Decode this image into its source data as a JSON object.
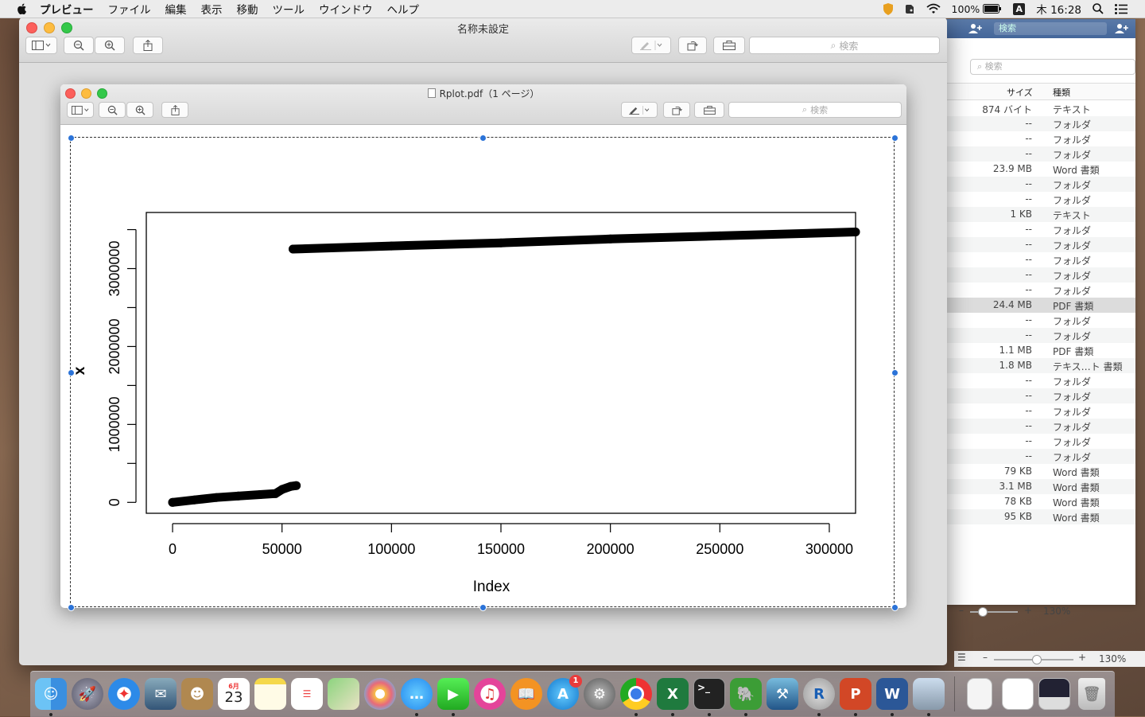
{
  "menubar": {
    "app": "プレビュー",
    "items": [
      "ファイル",
      "編集",
      "表示",
      "移動",
      "ツール",
      "ウインドウ",
      "ヘルプ"
    ],
    "battery": "100%",
    "ime": "A",
    "clock": "木 16:28"
  },
  "outer_window": {
    "title": "名称未設定",
    "search_placeholder": "検索"
  },
  "inner_window": {
    "title": "Rplot.pdf（1 ページ）",
    "search_placeholder": "検索"
  },
  "finder": {
    "search_top": "検索",
    "search_placeholder": "検索",
    "col_size": "サイズ",
    "col_kind": "種類",
    "rows": [
      {
        "size": "874 バイト",
        "kind": "テキスト"
      },
      {
        "size": "--",
        "kind": "フォルダ"
      },
      {
        "size": "--",
        "kind": "フォルダ"
      },
      {
        "size": "--",
        "kind": "フォルダ"
      },
      {
        "size": "23.9 MB",
        "kind": "Word 書類"
      },
      {
        "size": "--",
        "kind": "フォルダ"
      },
      {
        "size": "--",
        "kind": "フォルダ"
      },
      {
        "size": "1 KB",
        "kind": "テキスト"
      },
      {
        "size": "--",
        "kind": "フォルダ"
      },
      {
        "size": "--",
        "kind": "フォルダ"
      },
      {
        "size": "--",
        "kind": "フォルダ"
      },
      {
        "size": "--",
        "kind": "フォルダ"
      },
      {
        "size": "--",
        "kind": "フォルダ"
      },
      {
        "size": "24.4 MB",
        "kind": "PDF 書類"
      },
      {
        "size": "--",
        "kind": "フォルダ"
      },
      {
        "size": "--",
        "kind": "フォルダ"
      },
      {
        "size": "1.1 MB",
        "kind": "PDF 書類"
      },
      {
        "size": "1.8 MB",
        "kind": "テキス…ト 書類"
      },
      {
        "size": "--",
        "kind": "フォルダ"
      },
      {
        "size": "--",
        "kind": "フォルダ"
      },
      {
        "size": "--",
        "kind": "フォルダ"
      },
      {
        "size": "--",
        "kind": "フォルダ"
      },
      {
        "size": "--",
        "kind": "フォルダ"
      },
      {
        "size": "--",
        "kind": "フォルダ"
      },
      {
        "size": "79 KB",
        "kind": "Word 書類"
      },
      {
        "size": "3.1 MB",
        "kind": "Word 書類"
      },
      {
        "size": "78 KB",
        "kind": "Word 書類"
      },
      {
        "size": "95 KB",
        "kind": "Word 書類"
      }
    ],
    "zoom_label": "130%",
    "zoom_label2": "130%"
  },
  "dock": {
    "calendar_month": "6月",
    "calendar_day": "23",
    "appstore_badge": "1",
    "apps": [
      "finder",
      "launchpad",
      "safari",
      "mail",
      "contacts",
      "calendar",
      "notes",
      "reminders",
      "maps",
      "photos",
      "messages",
      "facetime",
      "itunes",
      "ibooks",
      "app-store",
      "system-preferences",
      "chrome",
      "excel",
      "terminal",
      "evernote",
      "xcode",
      "r",
      "powerpoint",
      "word",
      "preview",
      "documents",
      "downloads",
      "screenshot",
      "trash"
    ]
  },
  "chart_data": {
    "type": "scatter",
    "xlabel": "Index",
    "ylabel": "x",
    "xlim": [
      -12000,
      312000
    ],
    "ylim": [
      -140000,
      3720000
    ],
    "xticks": [
      0,
      50000,
      100000,
      150000,
      200000,
      250000,
      300000
    ],
    "xtick_labels": [
      "0",
      "50000",
      "100000",
      "150000",
      "200000",
      "250000",
      "300000"
    ],
    "yticks": [
      0,
      1000000,
      2000000,
      3000000
    ],
    "ytick_labels": [
      "0",
      "1000000",
      "2000000",
      "3000000"
    ],
    "yminor": [
      500000,
      1500000,
      2500000,
      3500000
    ],
    "series": [
      {
        "points": [
          [
            0,
            0
          ],
          [
            10000,
            32000
          ],
          [
            20000,
            62000
          ],
          [
            30000,
            82000
          ],
          [
            40000,
            100000
          ],
          [
            47000,
            112000
          ],
          [
            50000,
            165000
          ],
          [
            54000,
            205000
          ],
          [
            56500,
            215000
          ]
        ]
      },
      {
        "points": [
          [
            55000,
            3250000
          ],
          [
            100000,
            3290000
          ],
          [
            150000,
            3330000
          ],
          [
            200000,
            3380000
          ],
          [
            250000,
            3420000
          ],
          [
            312000,
            3470000
          ]
        ]
      }
    ]
  }
}
